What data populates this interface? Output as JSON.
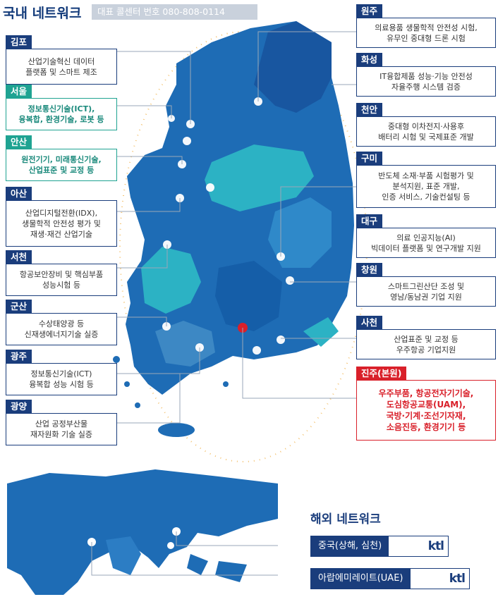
{
  "header": {
    "title": "국내 네트워크",
    "hotline": "대표 콜센터 번호 080-808-0114"
  },
  "sites_left": [
    {
      "name": "김포",
      "desc": "산업기술혁신 데이터\n플랫폼 및 스마트 제조"
    },
    {
      "name": "서울",
      "desc": "정보통신기술(ICT),\n융복합, 환경기술, 로봇 등"
    },
    {
      "name": "안산",
      "desc": "원전기기, 미래통신기술,\n산업표준 및 교정 등"
    },
    {
      "name": "아산",
      "desc": "산업디지털전환(IDX),\n생물학적 안전성 평가 및\n재생·재건 산업기술"
    },
    {
      "name": "서천",
      "desc": "항공보안장비 및 핵심부품\n성능시험 등"
    },
    {
      "name": "군산",
      "desc": "수상태양광 등\n신재생에너지기술 실증"
    },
    {
      "name": "광주",
      "desc": "정보통신기술(ICT)\n융복합 성능 시험 등"
    },
    {
      "name": "광양",
      "desc": "산업 공정부산물\n재자원화 기술 실증"
    }
  ],
  "sites_right": [
    {
      "name": "원주",
      "desc": "의료용품 생물학적 안전성 시험,\n유무인 중대형 드론 시험"
    },
    {
      "name": "화성",
      "desc": "IT융합제품 성능·기능 안전성\n자율주행 시스템 검증"
    },
    {
      "name": "천안",
      "desc": "중대형 이차전지·사용후\n배터리 시험 및 국제표준 개발"
    },
    {
      "name": "구미",
      "desc": "반도체 소재·부품 시험평가 및\n분석지원, 표준 개발,\n인증 서비스, 기술컨설팅 등"
    },
    {
      "name": "대구",
      "desc": "의료 인공지능(AI)\n빅데이터 플랫폼 및 연구개발 지원"
    },
    {
      "name": "창원",
      "desc": "스마트그린산단 조성 및\n영남/동남권 기업 지원"
    },
    {
      "name": "사천",
      "desc": "산업표준 및 교정 등\n우주항공 기업지원"
    },
    {
      "name": "진주(본원)",
      "desc": "우주부품, 항공전자기기술,\n도심항공교통(UAM),\n국방·기계·조선기자재,\n소음진동, 환경기기 등"
    }
  ],
  "overseas": {
    "title": "해외 네트워크",
    "items": [
      {
        "label": "중국(상해, 심천)",
        "logo": "ktl"
      },
      {
        "label": "아랍에미레이트(UAE)",
        "logo": "ktl"
      }
    ]
  },
  "colors": {
    "navy": "#1a3d7c",
    "teal": "#1fa392",
    "red": "#d9202a",
    "mapBlue": "#1f6fb8",
    "mapTeal": "#2bb0c2"
  }
}
